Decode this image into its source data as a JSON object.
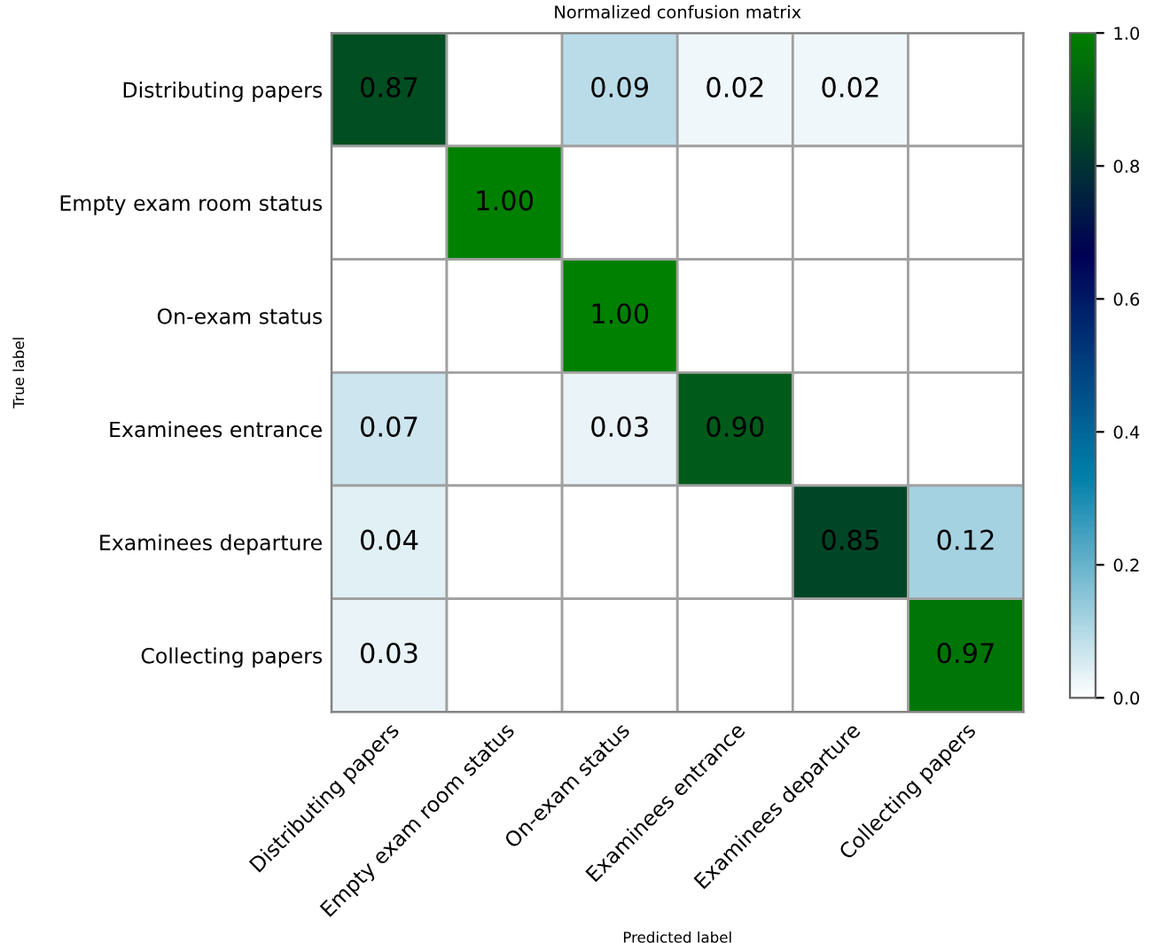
{
  "chart_data": {
    "type": "heatmap",
    "title": "Normalized confusion matrix",
    "xlabel": "Predicted label",
    "ylabel": "True label",
    "categories": [
      "Distributing papers",
      "Empty exam room status",
      "On-exam status",
      "Examinees entrance",
      "Examinees departure",
      "Collecting papers"
    ],
    "y_categories": [
      "Distributing papers",
      "Empty exam room status",
      "On-exam status",
      "Examinees entrance",
      "Examinees departure",
      "Collecting papers"
    ],
    "cells": [
      [
        0.87,
        0,
        0.09,
        0.02,
        0.02,
        0
      ],
      [
        0,
        1.0,
        0,
        0,
        0,
        0
      ],
      [
        0,
        0,
        1.0,
        0,
        0,
        0
      ],
      [
        0.07,
        0,
        0.03,
        0.9,
        0,
        0
      ],
      [
        0.04,
        0,
        0,
        0,
        0.85,
        0.12
      ],
      [
        0.03,
        0,
        0,
        0,
        0,
        0.97
      ]
    ],
    "cell_labels": [
      [
        "0.87",
        null,
        "0.09",
        "0.02",
        "0.02",
        null
      ],
      [
        null,
        "1.00",
        null,
        null,
        null,
        null
      ],
      [
        null,
        null,
        "1.00",
        null,
        null,
        null
      ],
      [
        "0.07",
        null,
        "0.03",
        "0.90",
        null,
        null
      ],
      [
        "0.04",
        null,
        null,
        null,
        "0.85",
        "0.12"
      ],
      [
        "0.03",
        null,
        null,
        null,
        null,
        "0.97"
      ]
    ],
    "clim": [
      0,
      1
    ],
    "cticks": [
      {
        "value": 0,
        "label": "0.0"
      },
      {
        "value": 0.2,
        "label": "0.2"
      },
      {
        "value": 0.4,
        "label": "0.4"
      },
      {
        "value": 0.6,
        "label": "0.6"
      },
      {
        "value": 0.8,
        "label": "0.8"
      },
      {
        "value": 1,
        "label": "1.0"
      }
    ]
  }
}
